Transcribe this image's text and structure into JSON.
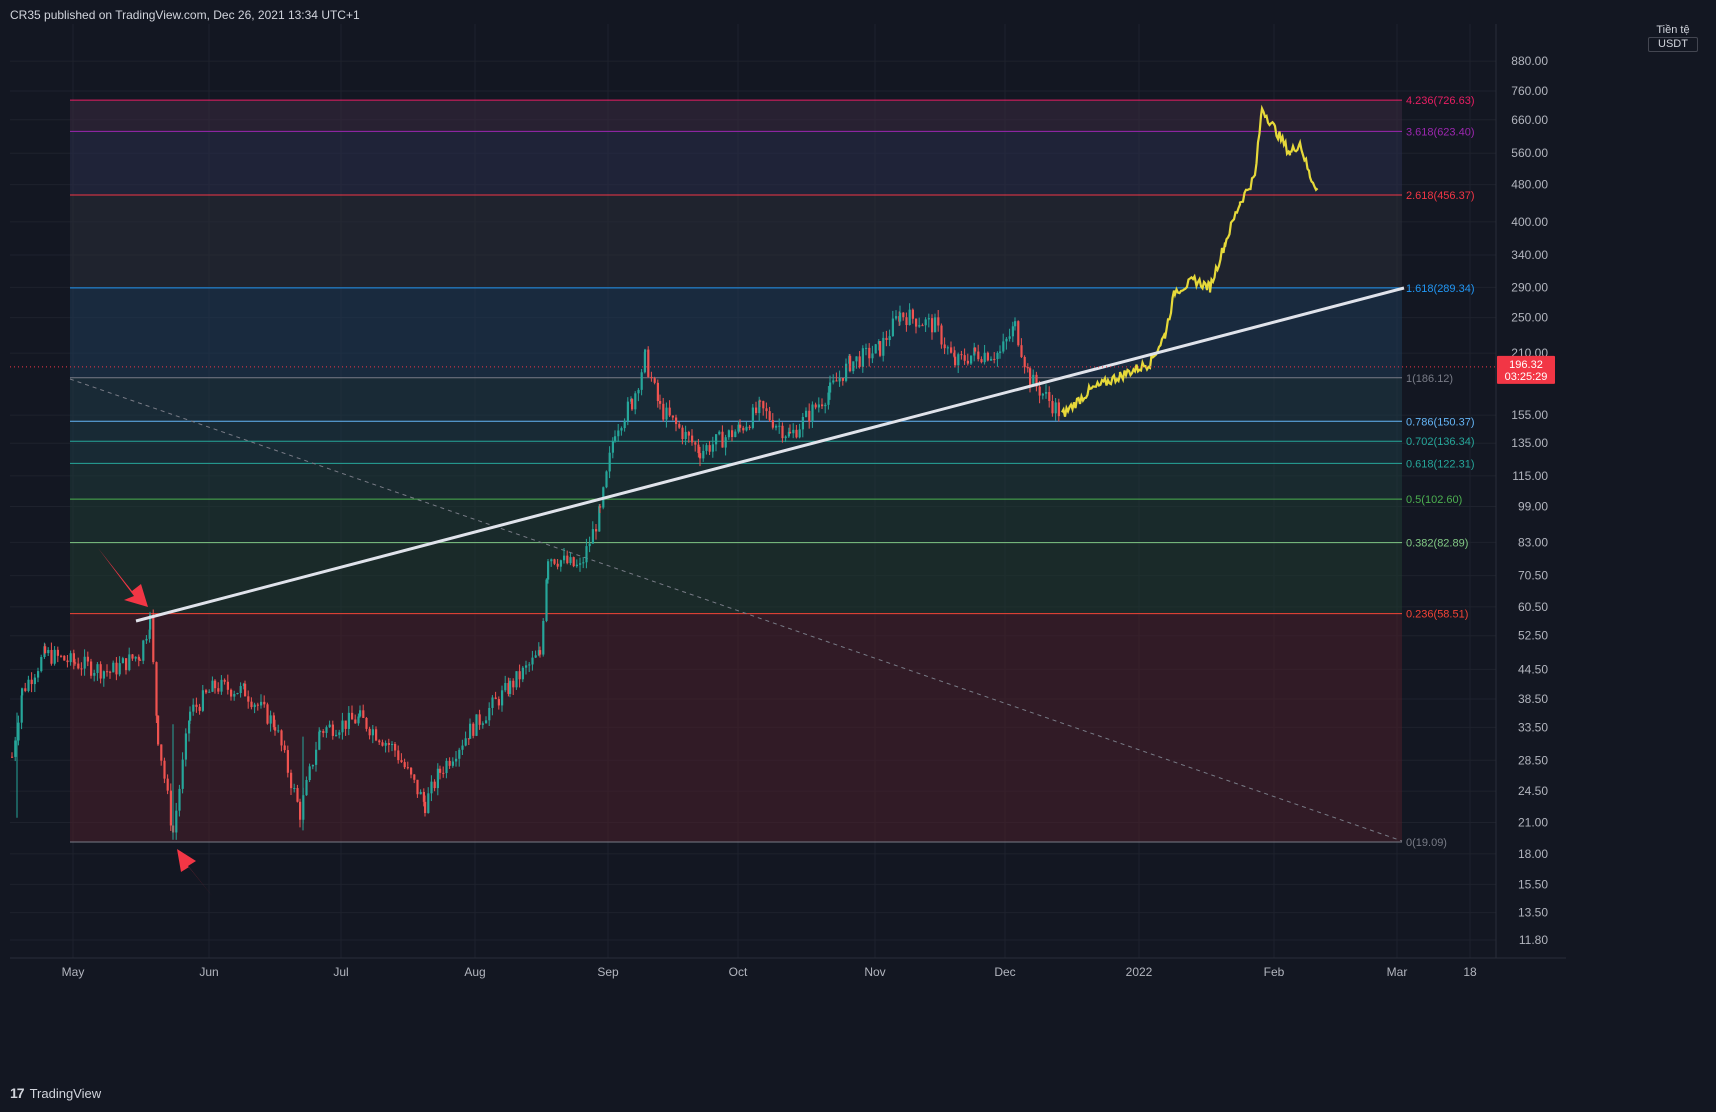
{
  "header": {
    "publish_info": "CR35 published on TradingView.com, Dec 26, 2021 13:34 UTC+1"
  },
  "price_axis": {
    "currency_line1": "Tiền tệ",
    "currency_unit": "USDT",
    "ticks": [
      "880.00",
      "760.00",
      "660.00",
      "560.00",
      "480.00",
      "400.00",
      "340.00",
      "290.00",
      "250.00",
      "210.00",
      "155.00",
      "135.00",
      "115.00",
      "99.00",
      "83.00",
      "70.50",
      "60.50",
      "52.50",
      "44.50",
      "38.50",
      "33.50",
      "28.50",
      "24.50",
      "21.00",
      "18.00",
      "15.50",
      "13.50",
      "11.80"
    ],
    "current_price": "196.32",
    "countdown": "03:25:29"
  },
  "time_axis": {
    "labels": [
      "May",
      "Jun",
      "Jul",
      "Aug",
      "Sep",
      "Oct",
      "Nov",
      "Dec",
      "2022",
      "Feb",
      "Mar",
      "18"
    ]
  },
  "fib_levels": [
    {
      "label": "4.236(726.63)",
      "color": "#e91e63"
    },
    {
      "label": "3.618(623.40)",
      "color": "#9c27b0"
    },
    {
      "label": "2.618(456.37)",
      "color": "#f23645"
    },
    {
      "label": "1.618(289.34)",
      "color": "#2196f3"
    },
    {
      "label": "1(186.12)",
      "color": "#787b86"
    },
    {
      "label": "0.786(150.37)",
      "color": "#64b5f6"
    },
    {
      "label": "0.702(136.34)",
      "color": "#26a69a"
    },
    {
      "label": "0.618(122.31)",
      "color": "#26a69a"
    },
    {
      "label": "0.5(102.60)",
      "color": "#4caf50"
    },
    {
      "label": "0.382(82.89)",
      "color": "#81c784"
    },
    {
      "label": "0.236(58.51)",
      "color": "#f44336"
    },
    {
      "label": "0(19.09)",
      "color": "#787b86"
    }
  ],
  "chart_data": {
    "type": "candlestick",
    "price_scale": "log",
    "annotations": [
      "trendline",
      "dashed-projection-line",
      "red-arrow-top",
      "red-arrow-bottom",
      "yellow-projection-path"
    ],
    "colors": {
      "up": "#26a69a",
      "down": "#ef5350",
      "projection": "#e6d93a",
      "trendline": "#e0e3eb"
    }
  },
  "footer": {
    "brand": "TradingView"
  }
}
